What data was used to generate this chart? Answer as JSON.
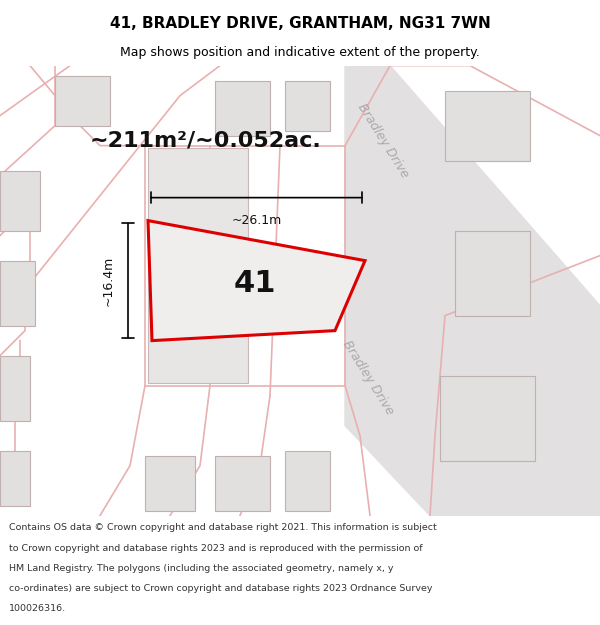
{
  "title": "41, BRADLEY DRIVE, GRANTHAM, NG31 7WN",
  "subtitle": "Map shows position and indicative extent of the property.",
  "area_label": "~211m²/~0.052ac.",
  "plot_number": "41",
  "dim_width": "~26.1m",
  "dim_height": "~16.4m",
  "footer_lines": [
    "Contains OS data © Crown copyright and database right 2021. This information is subject",
    "to Crown copyright and database rights 2023 and is reproduced with the permission of",
    "HM Land Registry. The polygons (including the associated geometry, namely x, y",
    "co-ordinates) are subject to Crown copyright and database rights 2023 Ordnance Survey",
    "100026316."
  ],
  "map_bg": "#f5f2f2",
  "plot_stroke": "#dd0000",
  "plot_fill": "#f0eded",
  "street_label_color": "#aaaaaa",
  "title_color": "#000000",
  "footer_color": "#333333",
  "road_lines_color": "#e8b0b0",
  "figsize": [
    6.0,
    6.25
  ],
  "dpi": 100
}
